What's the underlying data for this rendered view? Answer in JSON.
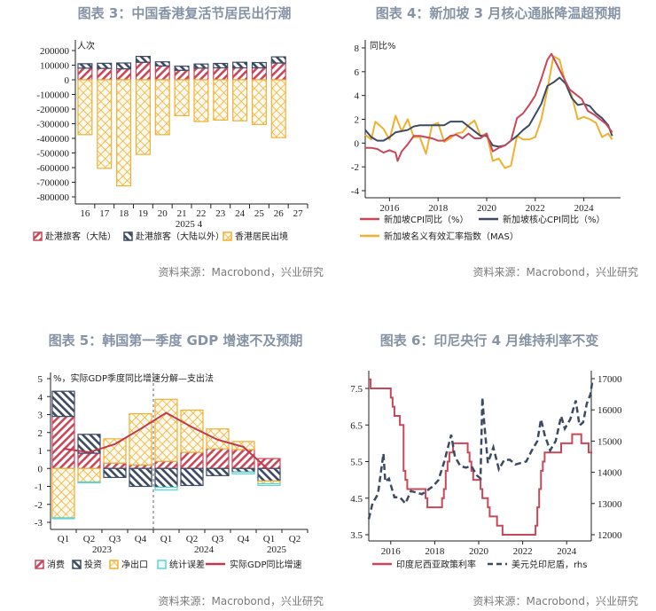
{
  "chart_data": [
    {
      "type": "bar",
      "title": "图表 3：中国香港复活节居民出行潮",
      "source": "资料来源：Macrobond，兴业研究",
      "unit_label": "人次",
      "xlabel": "2025 4",
      "categories": [
        "16",
        "17",
        "18",
        "19",
        "20",
        "21",
        "22",
        "23",
        "24",
        "25",
        "26",
        "27"
      ],
      "ylim": [
        -850000,
        230000
      ],
      "yticks": [
        "200000",
        "100000",
        "0",
        "-100000",
        "-200000",
        "-300000",
        "-400000",
        "-500000",
        "-600000",
        "-700000",
        "-800000"
      ],
      "stacked": true,
      "series": [
        {
          "name": "赴港旅客（大陆）",
          "color": "#c8485a",
          "values": [
            80000,
            78000,
            75000,
            120000,
            95000,
            65000,
            80000,
            82000,
            82000,
            82000,
            115000,
            null
          ]
        },
        {
          "name": "赴港旅客（大陆以外）",
          "color": "#3d4a63",
          "values": [
            30000,
            35000,
            40000,
            40000,
            28000,
            28000,
            28000,
            30000,
            38000,
            36000,
            42000,
            null
          ]
        },
        {
          "name": "香港居民出境",
          "color": "#f0b030",
          "values": [
            -375000,
            -605000,
            -725000,
            -510000,
            -375000,
            -245000,
            -285000,
            -275000,
            -280000,
            -305000,
            -395000,
            null
          ]
        }
      ],
      "grid": false,
      "legend": "bottom"
    },
    {
      "type": "line",
      "title": "图表 4：新加坡 3 月核心通胀降温超预期",
      "source": "资料来源：Macrobond，兴业研究",
      "ylabel": "同比%",
      "ylim": [
        -4.5,
        8.5
      ],
      "yticks": [
        "8",
        "6",
        "4",
        "2",
        "0",
        "-2",
        "-4"
      ],
      "xlim": [
        "2015-01",
        "2025-06"
      ],
      "xticks": [
        "2016",
        "2018",
        "2020",
        "2022",
        "2024"
      ],
      "grid": false,
      "legend": "bottom",
      "series": [
        {
          "name": "新加坡CPI同比（%）",
          "color": "#c8485a",
          "x": [
            "2015-01",
            "2015-04",
            "2015-07",
            "2015-10",
            "2016-01",
            "2016-04",
            "2016-05",
            "2016-07",
            "2016-10",
            "2017-01",
            "2017-04",
            "2017-07",
            "2017-10",
            "2018-01",
            "2018-04",
            "2018-07",
            "2018-10",
            "2019-01",
            "2019-04",
            "2019-07",
            "2019-10",
            "2020-01",
            "2020-04",
            "2020-07",
            "2020-10",
            "2021-01",
            "2021-04",
            "2021-07",
            "2021-10",
            "2022-01",
            "2022-04",
            "2022-07",
            "2022-09",
            "2022-12",
            "2023-03",
            "2023-06",
            "2023-09",
            "2023-12",
            "2024-03",
            "2024-06",
            "2024-09",
            "2024-12",
            "2025-03"
          ],
          "values": [
            -0.4,
            -0.4,
            -0.5,
            -0.8,
            -0.6,
            -0.8,
            -1.5,
            -0.7,
            -0.1,
            0.6,
            0.6,
            0.5,
            0.4,
            0.2,
            0.2,
            0.6,
            0.7,
            0.4,
            0.8,
            0.4,
            0.4,
            0.8,
            -0.7,
            -0.4,
            -0.2,
            0.2,
            2.1,
            2.5,
            3.2,
            4.0,
            5.4,
            7.0,
            7.5,
            6.5,
            5.5,
            4.5,
            4.1,
            3.7,
            2.7,
            2.4,
            2.0,
            1.6,
            0.9
          ]
        },
        {
          "name": "新加坡核心CPI同比（%）",
          "color": "#3d4a63",
          "x": [
            "2015-01",
            "2015-04",
            "2015-07",
            "2015-10",
            "2016-01",
            "2016-04",
            "2016-07",
            "2016-10",
            "2017-01",
            "2017-04",
            "2017-07",
            "2017-10",
            "2018-01",
            "2018-04",
            "2018-07",
            "2018-10",
            "2019-01",
            "2019-04",
            "2019-07",
            "2019-10",
            "2020-01",
            "2020-04",
            "2020-07",
            "2020-10",
            "2021-01",
            "2021-04",
            "2021-07",
            "2021-10",
            "2022-01",
            "2022-04",
            "2022-07",
            "2022-10",
            "2023-01",
            "2023-04",
            "2023-07",
            "2023-10",
            "2024-01",
            "2024-04",
            "2024-07",
            "2024-10",
            "2025-01",
            "2025-03"
          ],
          "values": [
            1.1,
            0.5,
            0.2,
            0.2,
            0.5,
            0.9,
            1.0,
            1.1,
            1.4,
            1.5,
            1.5,
            1.5,
            1.5,
            1.5,
            1.8,
            1.8,
            1.8,
            1.4,
            1.0,
            0.6,
            0.6,
            -0.2,
            -0.3,
            -0.2,
            0.2,
            0.6,
            1.1,
            1.5,
            2.4,
            3.3,
            4.8,
            5.1,
            5.5,
            5.0,
            3.8,
            3.2,
            3.3,
            3.1,
            2.5,
            2.1,
            1.5,
            0.6
          ]
        },
        {
          "name": "新加坡名义有效汇率指数（MAS）",
          "color": "#f0b030",
          "x": [
            "2015-01",
            "2015-04",
            "2015-06",
            "2015-10",
            "2016-01",
            "2016-04",
            "2016-07",
            "2016-10",
            "2017-01",
            "2017-04",
            "2017-07",
            "2017-10",
            "2018-01",
            "2018-04",
            "2018-07",
            "2018-10",
            "2019-01",
            "2019-04",
            "2019-07",
            "2019-10",
            "2020-01",
            "2020-04",
            "2020-07",
            "2020-10",
            "2021-01",
            "2021-04",
            "2021-07",
            "2021-10",
            "2022-01",
            "2022-04",
            "2022-07",
            "2022-10",
            "2023-01",
            "2023-04",
            "2023-07",
            "2023-10",
            "2024-01",
            "2024-04",
            "2024-07",
            "2024-10",
            "2025-01",
            "2025-03"
          ],
          "values": [
            0.7,
            0.3,
            1.8,
            1.2,
            0.3,
            2.3,
            1.0,
            2.0,
            0.5,
            0.5,
            -0.9,
            1.5,
            1.7,
            0.1,
            0.4,
            0.8,
            0.9,
            1.5,
            1.9,
            0.6,
            0.8,
            -1.5,
            -1.3,
            -2.1,
            -1.9,
            0.6,
            0.3,
            0.3,
            0.5,
            2.0,
            4.5,
            7.3,
            7.0,
            5.0,
            4.0,
            2.0,
            2.2,
            2.0,
            1.7,
            0.5,
            0.8,
            0.3
          ]
        }
      ]
    },
    {
      "type": "bar",
      "title": "图表 5：韩国第一季度 GDP 增速不及预期",
      "source": "资料来源：Macrobond，兴业研究",
      "annotation": "%，实际GDP季度同比增速分解—支出法",
      "categories": [
        "Q1",
        "Q2",
        "Q3",
        "Q4",
        "Q1",
        "Q2",
        "Q3",
        "Q4",
        "Q1",
        "Q2"
      ],
      "year_groups": [
        "2023",
        "2024",
        "2025"
      ],
      "ylim": [
        -3.4,
        5.2
      ],
      "yticks": [
        "5",
        "4",
        "3",
        "2",
        "1",
        "0",
        "-1",
        "-2",
        "-3"
      ],
      "stacked": true,
      "grid": false,
      "legend": "bottom",
      "series": [
        {
          "name": "消费",
          "color": "#c8485a",
          "values": [
            2.9,
            0.85,
            0.3,
            0.2,
            0.4,
            0.9,
            1.1,
            1.05,
            0.55,
            null
          ]
        },
        {
          "name": "投资",
          "color": "#3d4a63",
          "values": [
            1.4,
            1.05,
            -0.5,
            -1.0,
            -1.05,
            -0.95,
            -0.4,
            -0.2,
            -0.7,
            null
          ]
        },
        {
          "name": "净出口",
          "color": "#f0b030",
          "values": [
            -2.75,
            -0.75,
            1.35,
            2.85,
            3.45,
            2.35,
            1.1,
            0.45,
            -0.15,
            null
          ]
        },
        {
          "name": "统计误差",
          "color": "#5fd3d3",
          "values": [
            -0.05,
            -0.05,
            0,
            0,
            -0.15,
            0,
            0,
            -0.1,
            -0.1,
            null
          ]
        },
        {
          "name": "实际GDP同比增速",
          "type": "line",
          "color": "#c0394b",
          "values": [
            1.1,
            0.9,
            1.35,
            2.2,
            3.1,
            2.3,
            1.6,
            1.2,
            -0.1,
            null
          ]
        }
      ]
    },
    {
      "type": "line",
      "title": "图表 6：印尼央行 4 月维持利率不变",
      "source": "资料来源：Macrobond，兴业研究",
      "ylim": [
        3.3,
        7.9
      ],
      "yticks": [
        "7.5",
        "6.5",
        "5.5",
        "4.5",
        "3.5"
      ],
      "y2lim": [
        11900,
        17300
      ],
      "y2ticks": [
        "17000",
        "16000",
        "15000",
        "14000",
        "13000",
        "12000"
      ],
      "xlim": [
        "2015-01",
        "2025-03"
      ],
      "xticks": [
        "2016",
        "2018",
        "2020",
        "2022",
        "2024"
      ],
      "grid": false,
      "legend": "bottom",
      "series": [
        {
          "name": "印度尼西亚政策利率",
          "color": "#c8485a",
          "step": true,
          "axis": "left",
          "x": [
            "2015-01",
            "2015-02",
            "2016-01",
            "2016-02",
            "2016-03",
            "2016-06",
            "2016-08",
            "2016-09",
            "2016-10",
            "2017-08",
            "2017-09",
            "2018-05",
            "2018-06",
            "2018-07",
            "2018-08",
            "2018-09",
            "2018-11",
            "2019-07",
            "2019-08",
            "2019-09",
            "2019-10",
            "2020-02",
            "2020-03",
            "2020-06",
            "2020-07",
            "2020-11",
            "2021-02",
            "2022-08",
            "2022-09",
            "2022-10",
            "2022-11",
            "2022-12",
            "2023-01",
            "2023-10",
            "2024-04",
            "2024-09",
            "2025-01",
            "2025-03"
          ],
          "values": [
            7.75,
            7.5,
            7.25,
            7.0,
            6.75,
            6.5,
            5.25,
            5.0,
            4.75,
            4.5,
            4.25,
            4.5,
            4.75,
            5.25,
            5.5,
            5.75,
            6.0,
            5.75,
            5.5,
            5.25,
            5.0,
            4.75,
            4.5,
            4.25,
            4.0,
            3.75,
            3.5,
            3.75,
            4.25,
            4.75,
            5.25,
            5.5,
            5.75,
            6.0,
            6.25,
            6.0,
            5.75,
            5.75
          ]
        },
        {
          "name": "美元兑印尼盾，rhs",
          "color": "#3d4a63",
          "dashed": true,
          "axis": "right",
          "x": [
            "2015-01",
            "2015-03",
            "2015-06",
            "2015-09",
            "2015-10",
            "2015-12",
            "2016-03",
            "2016-06",
            "2016-09",
            "2016-12",
            "2017-06",
            "2017-12",
            "2018-03",
            "2018-06",
            "2018-10",
            "2018-12",
            "2019-03",
            "2019-06",
            "2019-09",
            "2019-12",
            "2020-02",
            "2020-03",
            "2020-04",
            "2020-06",
            "2020-09",
            "2020-12",
            "2021-03",
            "2021-06",
            "2021-09",
            "2021-12",
            "2022-03",
            "2022-06",
            "2022-09",
            "2022-11",
            "2023-01",
            "2023-04",
            "2023-07",
            "2023-10",
            "2023-12",
            "2024-03",
            "2024-06",
            "2024-08",
            "2024-10",
            "2024-12",
            "2025-02",
            "2025-03"
          ],
          "values": [
            12500,
            13000,
            13300,
            14600,
            13700,
            13800,
            13200,
            13200,
            13000,
            13400,
            13300,
            13550,
            13750,
            14300,
            15200,
            14500,
            14200,
            14150,
            14200,
            13900,
            13800,
            16400,
            15600,
            14300,
            14800,
            14100,
            14400,
            14400,
            14250,
            14300,
            14350,
            14700,
            15000,
            15700,
            15200,
            14700,
            15000,
            15800,
            15400,
            15700,
            16300,
            15500,
            15600,
            16200,
            16500,
            16900
          ]
        }
      ]
    }
  ]
}
